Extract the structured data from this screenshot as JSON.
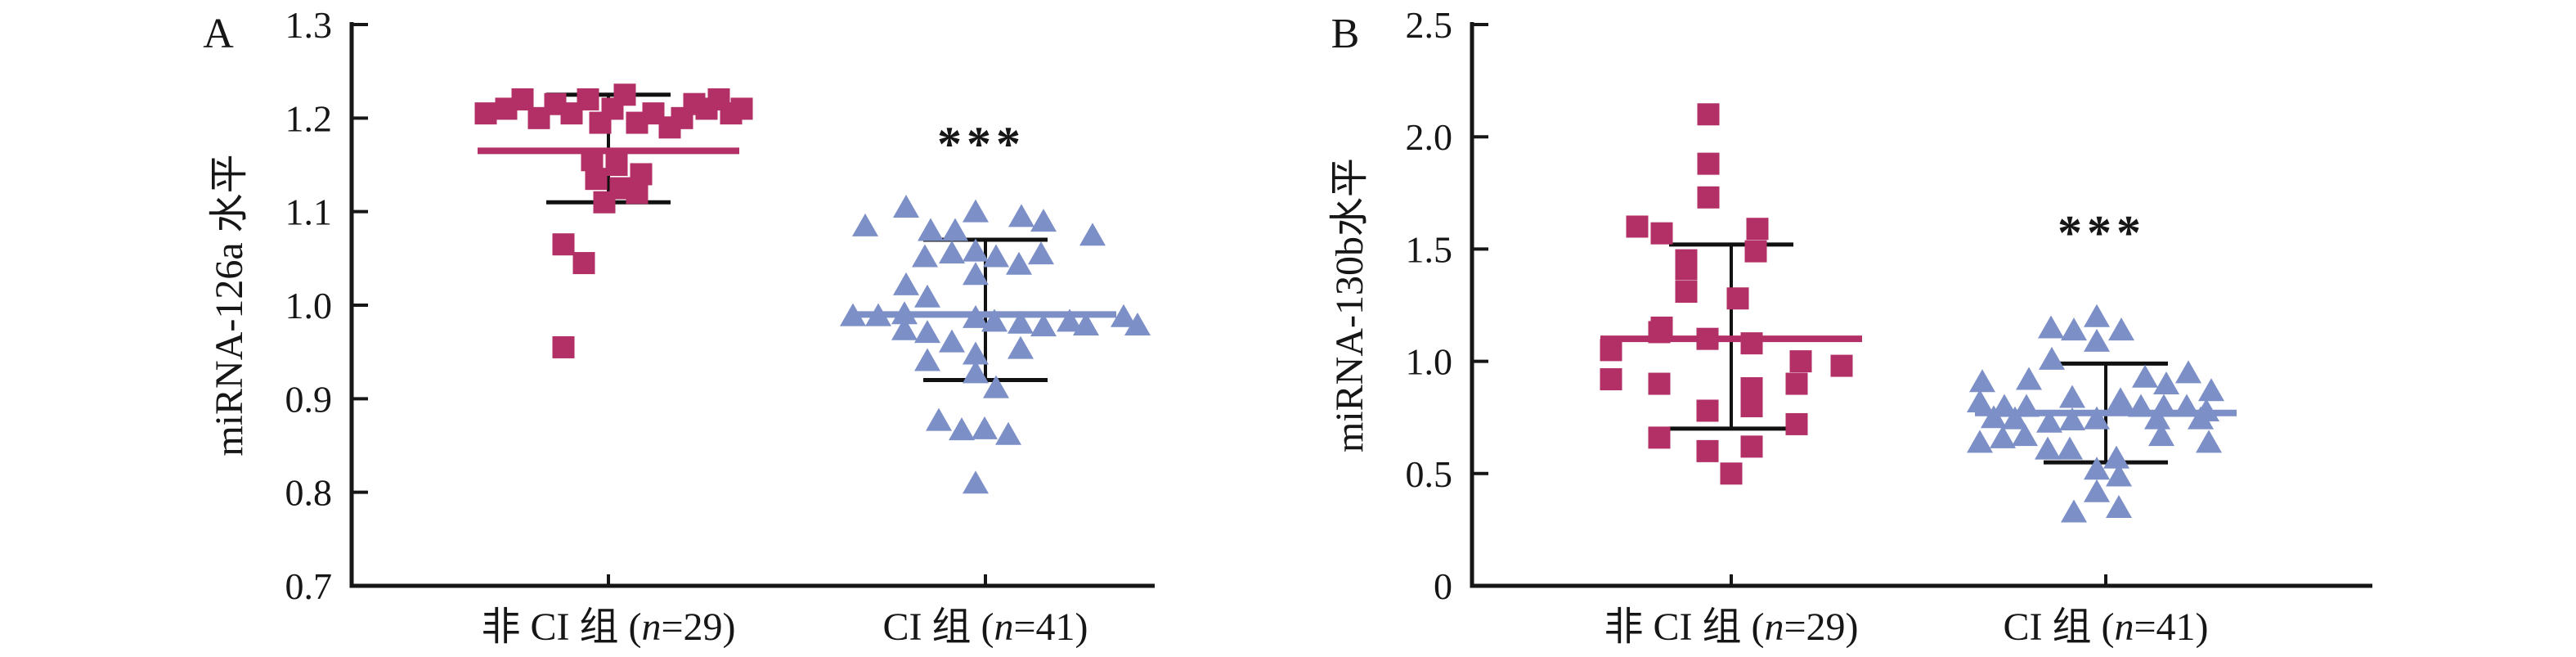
{
  "figure": {
    "background": "#ffffff",
    "text_color": "#161616",
    "axis_color": "#161616",
    "error_bar_color": "#111111"
  },
  "chart_data": [
    {
      "type": "scatter",
      "panel_label": "A",
      "ylabel": "miRNA-126a 水平",
      "xlabel": "",
      "ylim": [
        0.7,
        1.3
      ],
      "grid": false,
      "legend": "none",
      "yticks": [
        {
          "value": 0.7,
          "label": "0.7"
        },
        {
          "value": 0.8,
          "label": "0.8"
        },
        {
          "value": 0.9,
          "label": "0.9"
        },
        {
          "value": 1.0,
          "label": "1.0"
        },
        {
          "value": 1.1,
          "label": "1.1"
        },
        {
          "value": 1.2,
          "label": "1.2"
        },
        {
          "value": 1.3,
          "label": "1.3"
        }
      ],
      "categories": [
        "非 CI 组 (n=29)",
        "CI 组 (n=41)"
      ],
      "series": [
        {
          "name": "非 CI 组 (n=29)",
          "label_parts": {
            "prefix": "非 CI 组 (",
            "italic": "n",
            "suffix": "=29)"
          },
          "n": 29,
          "marker": "square",
          "color": "#b23066",
          "mean": 1.165,
          "error_high": 1.225,
          "error_low": 1.11,
          "significance": "",
          "sig_value": null,
          "points": [
            [
              -150,
              1.205
            ],
            [
              -125,
              1.21
            ],
            [
              -105,
              1.22
            ],
            [
              -85,
              1.2
            ],
            [
              -65,
              1.215
            ],
            [
              -45,
              1.205
            ],
            [
              -25,
              1.22
            ],
            [
              -10,
              1.195
            ],
            [
              5,
              1.21
            ],
            [
              20,
              1.225
            ],
            [
              35,
              1.195
            ],
            [
              55,
              1.205
            ],
            [
              75,
              1.19
            ],
            [
              90,
              1.2
            ],
            [
              105,
              1.215
            ],
            [
              120,
              1.21
            ],
            [
              135,
              1.22
            ],
            [
              150,
              1.205
            ],
            [
              163,
              1.21
            ],
            [
              -20,
              1.155
            ],
            [
              10,
              1.15
            ],
            [
              40,
              1.14
            ],
            [
              -15,
              1.135
            ],
            [
              15,
              1.125
            ],
            [
              35,
              1.12
            ],
            [
              -5,
              1.11
            ],
            [
              -55,
              1.065
            ],
            [
              -30,
              1.045
            ],
            [
              -55,
              0.955
            ]
          ]
        },
        {
          "name": "CI 组 (n=41)",
          "label_parts": {
            "prefix": "CI 组 (",
            "italic": "n",
            "suffix": "=41)"
          },
          "n": 41,
          "marker": "triangle",
          "color": "#7c8fc7",
          "mean": 0.99,
          "error_high": 1.07,
          "error_low": 0.92,
          "significance": "***",
          "sig_value": 1.155,
          "points": [
            [
              -97,
              1.105
            ],
            [
              -12,
              1.1
            ],
            [
              44,
              1.095
            ],
            [
              71,
              1.09
            ],
            [
              -147,
              1.085
            ],
            [
              -67,
              1.08
            ],
            [
              -37,
              1.08
            ],
            [
              131,
              1.075
            ],
            [
              -74,
              1.052
            ],
            [
              -41,
              1.056
            ],
            [
              -12,
              1.058
            ],
            [
              13,
              1.052
            ],
            [
              41,
              1.044
            ],
            [
              68,
              1.055
            ],
            [
              -12,
              1.033
            ],
            [
              -97,
              1.022
            ],
            [
              -71,
              1.009
            ],
            [
              -162,
              0.989
            ],
            [
              -131,
              0.989
            ],
            [
              -99,
              0.991
            ],
            [
              -12,
              0.987
            ],
            [
              11,
              0.983
            ],
            [
              43,
              0.981
            ],
            [
              71,
              0.978
            ],
            [
              103,
              0.983
            ],
            [
              123,
              0.979
            ],
            [
              169,
              0.988
            ],
            [
              186,
              0.979
            ],
            [
              -99,
              0.974
            ],
            [
              -71,
              0.971
            ],
            [
              -41,
              0.961
            ],
            [
              -12,
              0.948
            ],
            [
              43,
              0.954
            ],
            [
              -71,
              0.941
            ],
            [
              -12,
              0.928
            ],
            [
              13,
              0.912
            ],
            [
              -57,
              0.877
            ],
            [
              -29,
              0.867
            ],
            [
              -1,
              0.868
            ],
            [
              28,
              0.862
            ],
            [
              -12,
              0.81
            ]
          ]
        }
      ]
    },
    {
      "type": "scatter",
      "panel_label": "B",
      "ylabel": "miRNA-130b水平",
      "xlabel": "",
      "ylim": [
        0,
        2.5
      ],
      "grid": false,
      "legend": "none",
      "yticks": [
        {
          "value": 0,
          "label": "0"
        },
        {
          "value": 0.5,
          "label": "0.5"
        },
        {
          "value": 1.0,
          "label": "1.0"
        },
        {
          "value": 1.5,
          "label": "1.5"
        },
        {
          "value": 2.0,
          "label": "2.0"
        },
        {
          "value": 2.5,
          "label": "2.5"
        }
      ],
      "categories": [
        "非 CI 组 (n=29)",
        "CI 组 (n=41)"
      ],
      "series": [
        {
          "name": "非 CI 组 (n=29)",
          "label_parts": {
            "prefix": "非 CI 组 (",
            "italic": "n",
            "suffix": "=29)"
          },
          "n": 29,
          "marker": "square",
          "color": "#b23066",
          "mean": 1.1,
          "error_high": 1.52,
          "error_low": 0.7,
          "significance": "",
          "sig_value": null,
          "points": [
            [
              -28,
              2.1
            ],
            [
              -28,
              1.88
            ],
            [
              -28,
              1.73
            ],
            [
              -115,
              1.6
            ],
            [
              -85,
              1.57
            ],
            [
              32,
              1.59
            ],
            [
              30,
              1.49
            ],
            [
              -55,
              1.45
            ],
            [
              -55,
              1.41
            ],
            [
              8,
              1.28
            ],
            [
              -55,
              1.31
            ],
            [
              -85,
              1.15
            ],
            [
              -147,
              1.05
            ],
            [
              -88,
              1.13
            ],
            [
              -29,
              1.1
            ],
            [
              25,
              1.08
            ],
            [
              85,
              1.0
            ],
            [
              135,
              0.98
            ],
            [
              -147,
              0.92
            ],
            [
              -88,
              0.9
            ],
            [
              25,
              0.88
            ],
            [
              80,
              0.9
            ],
            [
              -29,
              0.78
            ],
            [
              25,
              0.8
            ],
            [
              -88,
              0.66
            ],
            [
              80,
              0.72
            ],
            [
              -29,
              0.6
            ],
            [
              25,
              0.62
            ],
            [
              0,
              0.5
            ]
          ]
        },
        {
          "name": "CI 组 (n=41)",
          "label_parts": {
            "prefix": "CI 组 (",
            "italic": "n",
            "suffix": "=41)"
          },
          "n": 41,
          "marker": "triangle",
          "color": "#7c8fc7",
          "mean": 0.77,
          "error_high": 0.99,
          "error_low": 0.55,
          "significance": "***",
          "sig_value": 1.5,
          "points": [
            [
              -67,
              1.15
            ],
            [
              -39,
              1.14
            ],
            [
              -11,
              1.2
            ],
            [
              19,
              1.14
            ],
            [
              -11,
              1.09
            ],
            [
              -66,
              1.01
            ],
            [
              -151,
              0.91
            ],
            [
              -94,
              0.92
            ],
            [
              48,
              0.93
            ],
            [
              74,
              0.9
            ],
            [
              101,
              0.95
            ],
            [
              129,
              0.87
            ],
            [
              -154,
              0.82
            ],
            [
              -124,
              0.8
            ],
            [
              -97,
              0.8
            ],
            [
              -41,
              0.84
            ],
            [
              18,
              0.83
            ],
            [
              43,
              0.8
            ],
            [
              71,
              0.8
            ],
            [
              99,
              0.8
            ],
            [
              123,
              0.78
            ],
            [
              -137,
              0.75
            ],
            [
              -111,
              0.745
            ],
            [
              -69,
              0.73
            ],
            [
              -41,
              0.74
            ],
            [
              -11,
              0.745
            ],
            [
              63,
              0.745
            ],
            [
              116,
              0.745
            ],
            [
              -154,
              0.64
            ],
            [
              -126,
              0.66
            ],
            [
              -99,
              0.67
            ],
            [
              -71,
              0.61
            ],
            [
              68,
              0.67
            ],
            [
              126,
              0.64
            ],
            [
              -44,
              0.61
            ],
            [
              13,
              0.57
            ],
            [
              -11,
              0.52
            ],
            [
              16,
              0.49
            ],
            [
              -11,
              0.42
            ],
            [
              -39,
              0.33
            ],
            [
              16,
              0.35
            ]
          ]
        }
      ]
    }
  ]
}
